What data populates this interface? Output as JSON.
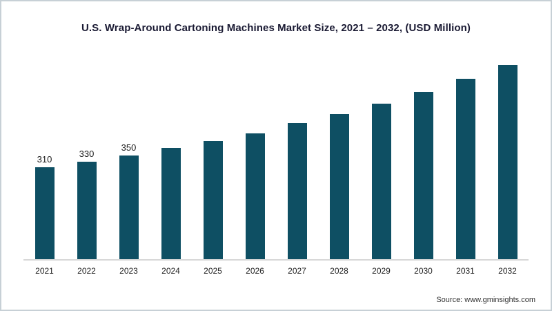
{
  "chart_data": {
    "type": "bar",
    "title": "U.S. Wrap-Around Cartoning Machines Market Size, 2021 – 2032, (USD Million)",
    "categories": [
      "2021",
      "2022",
      "2023",
      "2024",
      "2025",
      "2026",
      "2027",
      "2028",
      "2029",
      "2030",
      "2031",
      "2032"
    ],
    "values": [
      310,
      330,
      350,
      375,
      400,
      425,
      460,
      490,
      525,
      565,
      610,
      660
    ],
    "data_labels": [
      "310",
      "330",
      "350",
      "",
      "",
      "",
      "",
      "",
      "",
      "",
      "",
      ""
    ],
    "xlabel": "",
    "ylabel": "",
    "ylim": [
      0,
      700
    ],
    "grid": false,
    "legend": "none",
    "bar_color": "#0e4f63"
  },
  "source": {
    "text": "Source: www.gminsights.com"
  }
}
